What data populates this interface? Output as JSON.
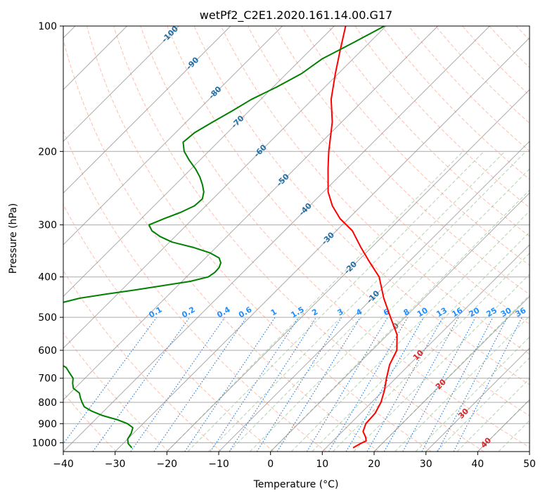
{
  "chart_data": {
    "type": "line",
    "title": "wetPf2_C2E1.2020.161.14.00.G17",
    "xlabel": "Temperature (°C)",
    "ylabel": "Pressure (hPa)",
    "xlim": [
      -40,
      50
    ],
    "ylim": [
      1050,
      100
    ],
    "y_scale": "log",
    "x_ticks": [
      -40,
      -30,
      -20,
      -10,
      0,
      10,
      20,
      30,
      40,
      50
    ],
    "x_tick_labels": [
      "−40",
      "−30",
      "−20",
      "−10",
      "0",
      "10",
      "20",
      "30",
      "40",
      "50"
    ],
    "y_ticks": [
      100,
      200,
      300,
      400,
      500,
      600,
      700,
      800,
      900,
      1000
    ],
    "y_tick_labels": [
      "100",
      "200",
      "300",
      "400",
      "500",
      "600",
      "700",
      "800",
      "900",
      "1000"
    ],
    "grid": true,
    "skew": 35,
    "series": [
      {
        "name": "",
        "color": "#ff0000",
        "p": [
          1028,
          1005,
          990,
          970,
          940,
          900,
          850,
          800,
          750,
          700,
          650,
          600,
          550,
          500,
          450,
          400,
          370,
          340,
          310,
          290,
          270,
          250,
          220,
          200,
          170,
          150,
          130,
          115,
          100
        ],
        "t": [
          15.2,
          15.8,
          16.4,
          15.6,
          14,
          13,
          12.8,
          11.8,
          10.2,
          8.2,
          6.2,
          4.8,
          1.8,
          -2.8,
          -7.8,
          -12.8,
          -17.3,
          -22,
          -26.9,
          -31.6,
          -35.6,
          -39.1,
          -43.6,
          -46.8,
          -51.8,
          -56.4,
          -60.6,
          -64,
          -67.8
        ]
      },
      {
        "name": "",
        "color": "#008000",
        "p": [
          1028,
          1005,
          980,
          950,
          920,
          900,
          880,
          860,
          840,
          820,
          800,
          780,
          760,
          740,
          720,
          700,
          680,
          660,
          640,
          620,
          600,
          590,
          580,
          570,
          560,
          550,
          540,
          530,
          520,
          510,
          500,
          490,
          480,
          470,
          460,
          450,
          440,
          430,
          420,
          410,
          400,
          390,
          380,
          370,
          360,
          350,
          340,
          330,
          320,
          310,
          300,
          290,
          280,
          270,
          260,
          250,
          240,
          230,
          220,
          210,
          200,
          190,
          180,
          170,
          160,
          150,
          140,
          130,
          120,
          110,
          100
        ],
        "t": [
          -27.5,
          -29,
          -30,
          -30.4,
          -31.2,
          -33,
          -35.8,
          -39.5,
          -42.3,
          -44.6,
          -45.9,
          -47.1,
          -48.2,
          -50.3,
          -51.4,
          -52.3,
          -54,
          -55.7,
          -58.6,
          -62.2,
          -69,
          -71.6,
          -72.8,
          -73.6,
          -74,
          -71.8,
          -71.6,
          -71.4,
          -72.2,
          -73,
          -73.2,
          -72.8,
          -71.6,
          -70.2,
          -68.8,
          -66.5,
          -62.3,
          -57.4,
          -53,
          -48.4,
          -45.8,
          -45.4,
          -45.5,
          -46.1,
          -47.4,
          -50.2,
          -54.3,
          -59.5,
          -62.9,
          -65.6,
          -67.3,
          -65.6,
          -63.6,
          -62.2,
          -62,
          -63.1,
          -64.8,
          -66.8,
          -69.2,
          -72,
          -74.7,
          -76.7,
          -76.3,
          -74.9,
          -73.3,
          -71.8,
          -69.3,
          -67.1,
          -66,
          -63.2,
          -60.3
        ]
      }
    ],
    "isotherm_labels": [
      "-100",
      "-90",
      "-80",
      "-70",
      "-60",
      "-50",
      "-40",
      "-30",
      "-20",
      "-10",
      "0",
      "10",
      "20",
      "30",
      "40"
    ],
    "isotherm_label_values": [
      -100,
      -90,
      -80,
      -70,
      -60,
      -50,
      -40,
      -30,
      -20,
      -10,
      0,
      10,
      20,
      30,
      40
    ],
    "mixing_ratio_labels": [
      "0.1",
      "0.2",
      "0.4",
      "0.6",
      "1",
      "1.5",
      "2",
      "3",
      "4",
      "6",
      "8",
      "10",
      "13",
      "16",
      "20",
      "25",
      "30",
      "36"
    ],
    "mixing_ratio_values": [
      0.1,
      0.2,
      0.4,
      0.6,
      1,
      1.5,
      2,
      3,
      4,
      6,
      8,
      10,
      13,
      16,
      20,
      25,
      30,
      36
    ],
    "colors": {
      "temperature": "#ff0000",
      "dewpoint": "#008000",
      "dry_adiabat": "#ff8866",
      "moist_adiabat": "#66aa66",
      "mixing_ratio": "#1f77d4",
      "isotherm": "#888888",
      "isotherm_label_cold": "#1f6fa8",
      "isotherm_label_zero": "#777777",
      "isotherm_label_warm": "#d62728",
      "mixing_ratio_label": "#1e90ff"
    }
  }
}
